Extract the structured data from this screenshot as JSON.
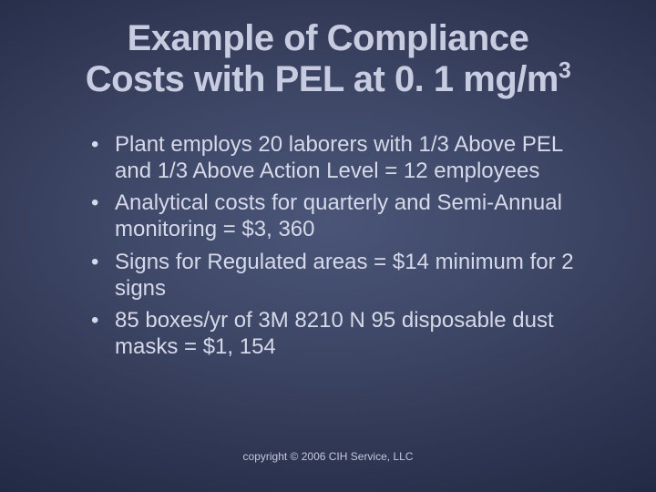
{
  "title_line1": "Example of Compliance",
  "title_line2_pre": "Costs with PEL at 0. 1 mg/m",
  "title_sup": "3",
  "bullets": [
    "Plant employs 20 laborers with 1/3 Above PEL and 1/3 Above Action Level = 12 employees",
    "Analytical costs for quarterly and Semi-Annual monitoring = $3, 360",
    "Signs for Regulated areas = $14 minimum for 2 signs",
    "85 boxes/yr of 3M 8210 N 95 disposable dust masks = $1, 154"
  ],
  "footer": "copyright © 2006 CIH Service, LLC"
}
